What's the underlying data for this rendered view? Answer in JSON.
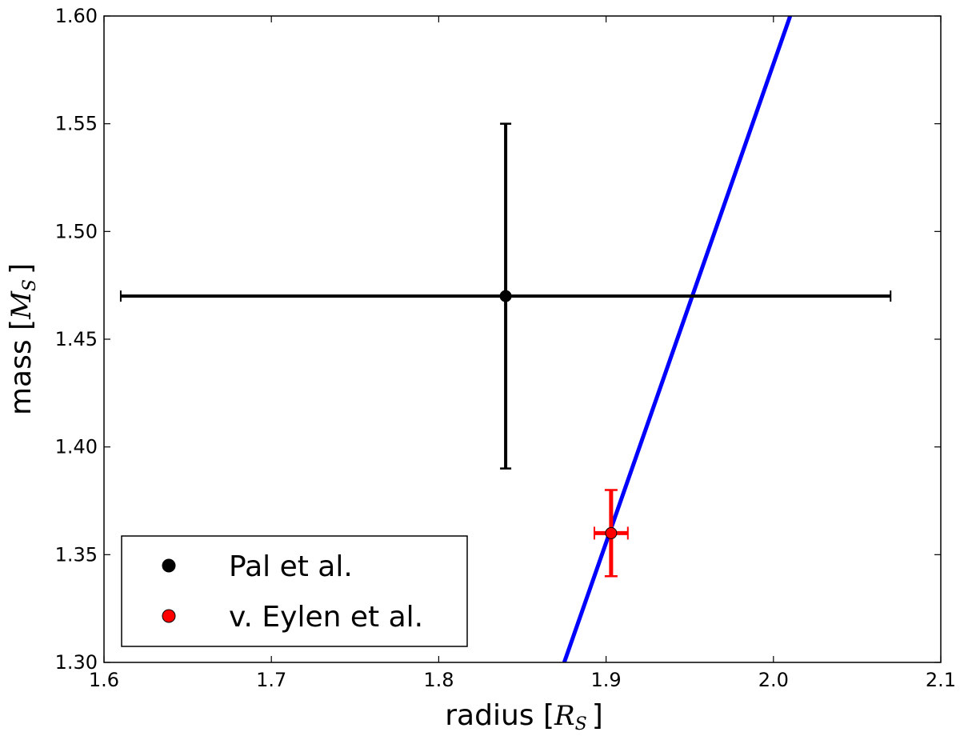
{
  "chart_data": {
    "type": "scatter",
    "xlabel": {
      "text": "radius [",
      "math": "R",
      "sub": "S",
      "close": "]"
    },
    "ylabel": {
      "text": "mass [",
      "math": "M",
      "sub": "S",
      "close": "]"
    },
    "xlim": [
      1.6,
      2.1
    ],
    "ylim": [
      1.3,
      1.6
    ],
    "xticks": [
      "1.6",
      "1.7",
      "1.8",
      "1.9",
      "2.0",
      "2.1"
    ],
    "yticks": [
      "1.30",
      "1.35",
      "1.40",
      "1.45",
      "1.50",
      "1.55",
      "1.60"
    ],
    "grid": false,
    "legend_position": "lower-left",
    "series": [
      {
        "name": "Pal et al.",
        "color": "#000000",
        "x": 1.84,
        "y": 1.47,
        "x_err": [
          1.61,
          2.07
        ],
        "y_err": [
          1.39,
          1.55
        ]
      },
      {
        "name": "v. Eylen et al.",
        "color": "#ff0000",
        "x": 1.903,
        "y": 1.36,
        "x_err": [
          1.893,
          1.913
        ],
        "y_err": [
          1.34,
          1.38
        ]
      }
    ],
    "line": {
      "color": "#0000ff",
      "x": [
        1.875,
        2.01
      ],
      "y": [
        1.3,
        1.6
      ]
    }
  }
}
